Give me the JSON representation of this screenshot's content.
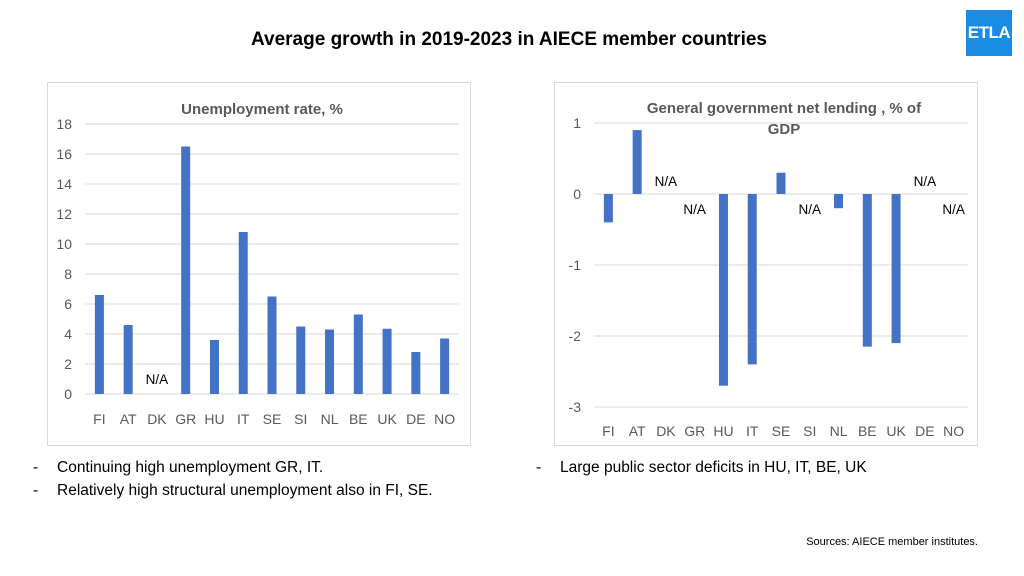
{
  "page": {
    "title": "Average growth in 2019-2023 in AIECE member countries",
    "logo_text": "ETLA",
    "sources": "Sources: AIECE member institutes."
  },
  "notes_left": [
    "Continuing high unemployment GR, IT.",
    "Relatively high structural unemployment also in FI, SE."
  ],
  "notes_right": [
    "Large public sector deficits in HU, IT, BE, UK"
  ],
  "dash": "-",
  "colors": {
    "bar": "#4472c4",
    "grid": "#d9d9d9",
    "frame": "#d9d9d9",
    "logo": "#1a8ce3"
  },
  "chart_data": [
    {
      "type": "bar",
      "title": "Unemployment rate, %",
      "categories": [
        "FI",
        "AT",
        "DK",
        "GR",
        "HU",
        "IT",
        "SE",
        "SI",
        "NL",
        "BE",
        "UK",
        "DE",
        "NO"
      ],
      "values": [
        6.6,
        4.6,
        null,
        16.5,
        3.6,
        10.8,
        6.5,
        4.5,
        4.3,
        5.3,
        4.35,
        2.8,
        3.7
      ],
      "na_label": "N/A",
      "ylim": [
        0,
        18
      ],
      "yticks": [
        "0",
        "2",
        "4",
        "6",
        "8",
        "10",
        "12",
        "14",
        "16",
        "18"
      ],
      "xlabel": "",
      "ylabel": "",
      "grid": true
    },
    {
      "type": "bar",
      "title_lines": [
        "General  government net lending , % of",
        "GDP"
      ],
      "categories": [
        "FI",
        "AT",
        "DK",
        "GR",
        "HU",
        "IT",
        "SE",
        "SI",
        "NL",
        "BE",
        "UK",
        "DE",
        "NO"
      ],
      "values": [
        -0.4,
        0.9,
        null,
        null,
        -2.7,
        -2.4,
        0.3,
        null,
        -0.2,
        -2.15,
        -2.1,
        null,
        null
      ],
      "na_label": "N/A",
      "ylim": [
        -3,
        1
      ],
      "yticks": [
        "-3",
        "-2",
        "-1",
        "0",
        "1"
      ],
      "xlabel": "",
      "ylabel": "",
      "grid": true
    }
  ]
}
